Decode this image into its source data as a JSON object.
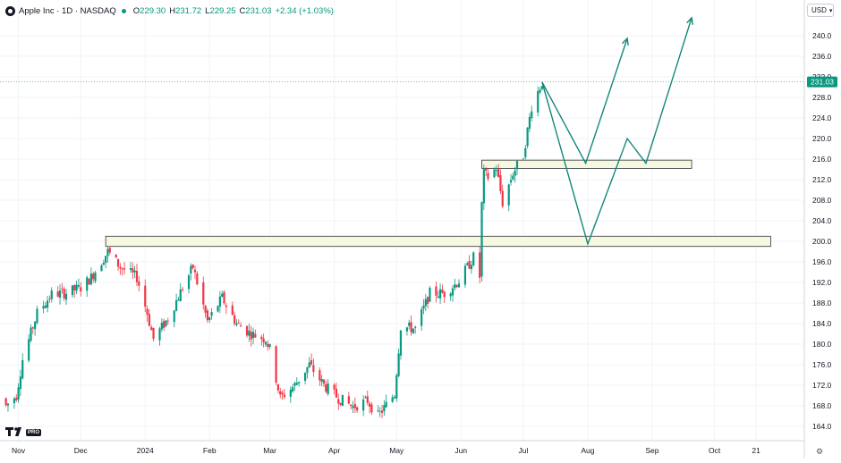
{
  "legend": {
    "symbol_name": "Apple Inc · 1D · NASDAQ",
    "open_label": "O",
    "open": "229.30",
    "high_label": "H",
    "high": "231.72",
    "low_label": "L",
    "low": "229.25",
    "close_label": "C",
    "close": "231.03",
    "change": "+2.34 (+1.03%)"
  },
  "currency": {
    "label": "USD"
  },
  "logo": {
    "text": "TV",
    "badge": "PRO"
  },
  "colors": {
    "up": "#089981",
    "down": "#f23645",
    "zone": "#f7f8e0",
    "projection": "#16867a"
  },
  "chart_data": {
    "type": "candlestick",
    "y_axis": {
      "ticks": [
        164,
        168,
        172,
        176,
        180,
        184,
        188,
        192,
        196,
        200,
        204,
        208,
        212,
        216,
        220,
        224,
        228,
        232,
        236,
        240
      ],
      "side": "right",
      "ylim": [
        162,
        245
      ]
    },
    "x_axis": {
      "labels": [
        "Nov",
        "Dec",
        "2024",
        "Feb",
        "Mar",
        "Apr",
        "May",
        "Jun",
        "Jul",
        "Aug",
        "Sep",
        "Oct",
        "21"
      ],
      "range": [
        "2023-10-24",
        "2024-10-30"
      ]
    },
    "last_price": 231.03,
    "last_price_label": "231.03",
    "zones": [
      {
        "start": "2023-12-13",
        "end": "2024-10-28",
        "top": 201.0,
        "bottom": 199.0
      },
      {
        "start": "2024-06-11",
        "end": "2024-09-20",
        "top": 215.8,
        "bottom": 214.2
      }
    ],
    "projections": [
      {
        "points": [
          [
            "2024-07-10",
            231
          ],
          [
            "2024-07-31",
            215.2
          ],
          [
            "2024-08-20",
            239.5
          ]
        ],
        "arrow": true
      },
      {
        "points": [
          [
            "2024-07-10",
            231
          ],
          [
            "2024-08-01",
            199.5
          ],
          [
            "2024-08-20",
            220
          ],
          [
            "2024-08-29",
            215.2
          ],
          [
            "2024-09-20",
            243.5
          ]
        ],
        "arrow": true
      }
    ],
    "anchors": [
      [
        "2023-10-26",
        168
      ],
      [
        "2023-10-31",
        170
      ],
      [
        "2023-11-03",
        177
      ],
      [
        "2023-11-10",
        186
      ],
      [
        "2023-11-17",
        189.7
      ],
      [
        "2023-11-24",
        190
      ],
      [
        "2023-12-01",
        191
      ],
      [
        "2023-12-06",
        193
      ],
      [
        "2023-12-14",
        198
      ],
      [
        "2023-12-20",
        195
      ],
      [
        "2023-12-28",
        193
      ],
      [
        "2024-01-02",
        186
      ],
      [
        "2024-01-05",
        181
      ],
      [
        "2024-01-12",
        185
      ],
      [
        "2024-01-19",
        191
      ],
      [
        "2024-01-24",
        195
      ],
      [
        "2024-01-31",
        184.4
      ],
      [
        "2024-02-07",
        189
      ],
      [
        "2024-02-14",
        184
      ],
      [
        "2024-02-21",
        182
      ],
      [
        "2024-02-28",
        181
      ],
      [
        "2024-03-01",
        179
      ],
      [
        "2024-03-06",
        169.5
      ],
      [
        "2024-03-13",
        172
      ],
      [
        "2024-03-20",
        176
      ],
      [
        "2024-03-27",
        172
      ],
      [
        "2024-04-03",
        169.5
      ],
      [
        "2024-04-10",
        167.8
      ],
      [
        "2024-04-17",
        169
      ],
      [
        "2024-04-22",
        166
      ],
      [
        "2024-04-30",
        170.3
      ],
      [
        "2024-05-03",
        183.4
      ],
      [
        "2024-05-10",
        183
      ],
      [
        "2024-05-17",
        189.9
      ],
      [
        "2024-05-24",
        189.9
      ],
      [
        "2024-05-31",
        192.3
      ],
      [
        "2024-06-07",
        196.9
      ],
      [
        "2024-06-10",
        193.1
      ],
      [
        "2024-06-11",
        207.2
      ],
      [
        "2024-06-12",
        213.1
      ],
      [
        "2024-06-14",
        212.5
      ],
      [
        "2024-06-18",
        214.3
      ],
      [
        "2024-06-21",
        207.5
      ],
      [
        "2024-06-26",
        213.3
      ],
      [
        "2024-07-01",
        216.8
      ],
      [
        "2024-07-05",
        226.3
      ],
      [
        "2024-07-10",
        231.0
      ]
    ]
  }
}
